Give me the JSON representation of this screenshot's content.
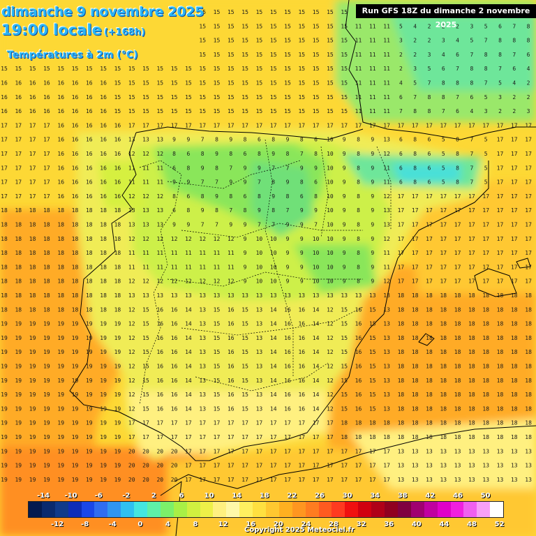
{
  "header": {
    "date": "dimanche 9 novembre 2025",
    "time": "19:00 locale",
    "lead": "(+168h)",
    "variable": "Températures à 2m (°C)",
    "run": "Run GFS 18Z du dimanche 2 novembre 2025"
  },
  "legend": {
    "top_labels": [
      "-14",
      "-10",
      "-6",
      "-2",
      "2",
      "6",
      "10",
      "14",
      "18",
      "22",
      "26",
      "30",
      "34",
      "38",
      "42",
      "46",
      "50"
    ],
    "bottom_labels": [
      "-12",
      "-8",
      "-4",
      "0",
      "4",
      "8",
      "12",
      "16",
      "20",
      "24",
      "28",
      "32",
      "36",
      "40",
      "44",
      "48",
      "52"
    ],
    "colors": [
      "#041a4f",
      "#0a2a6e",
      "#103a8a",
      "#0d2db8",
      "#1a47e8",
      "#2f6df0",
      "#2f95f0",
      "#2fc0f0",
      "#44e6e0",
      "#5ef0a8",
      "#7cf06a",
      "#a8f046",
      "#d0f040",
      "#eef048",
      "#fff080",
      "#fff8a8",
      "#fff060",
      "#ffe040",
      "#ffc830",
      "#ffb020",
      "#ff9620",
      "#ff7c20",
      "#ff5a20",
      "#ff3a20",
      "#f01010",
      "#d00010",
      "#b00018",
      "#900020",
      "#800040",
      "#a00070",
      "#c000a0",
      "#e000c8",
      "#f020e0",
      "#f060f0",
      "#f8a0f8",
      "#ffffff"
    ]
  },
  "copyright": "Copyright 2025 Meteociel.fr"
}
